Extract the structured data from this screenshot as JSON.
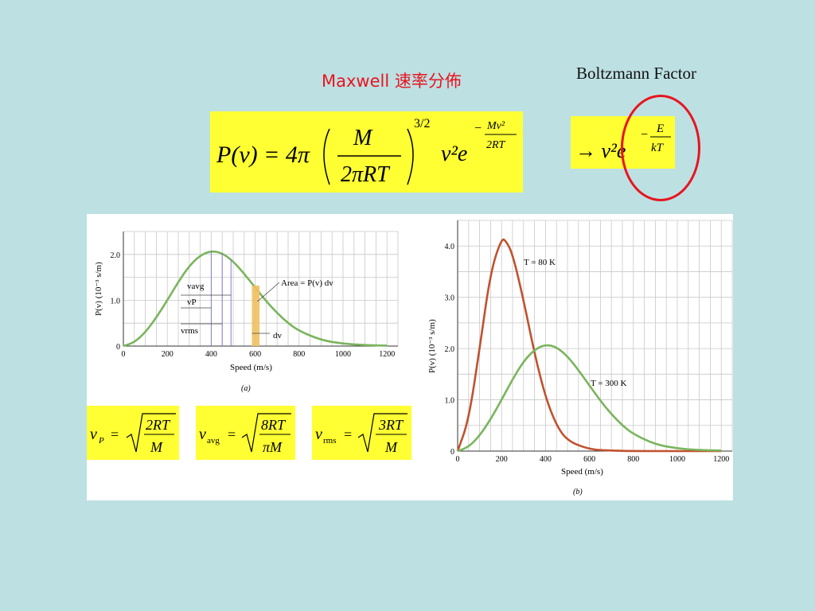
{
  "slide": {
    "title": "Maxwell 速率分佈",
    "boltzmann_label": "Boltzmann Factor",
    "colors": {
      "background": "#bde0e3",
      "highlight": "#ffff33",
      "title_red": "#e8141e",
      "curve_green": "#7ab55c",
      "curve_red": "#c0522e"
    }
  },
  "equations": {
    "maxwell": {
      "lhs": "P(v) = 4π",
      "frac_num": "M",
      "frac_den": "2πRT",
      "power": "3/2",
      "v2e": "v²e",
      "exp_num": "Mv²",
      "exp_den": "2RT",
      "minus": "−"
    },
    "boltzmann": {
      "arrow": "→ v²e",
      "exp_num": "E",
      "exp_den": "kT",
      "minus": "−"
    },
    "vp": {
      "lhs": "v",
      "sub": "P",
      "num": "2RT",
      "den": "M"
    },
    "vavg": {
      "lhs": "v",
      "sub": "avg",
      "num": "8RT",
      "den": "πM"
    },
    "vrms": {
      "lhs": "v",
      "sub": "rms",
      "num": "3RT",
      "den": "M"
    }
  },
  "chart_data": [
    {
      "type": "line",
      "caption": "(a)",
      "xlabel": "Speed (m/s)",
      "ylabel": "P(v) (10⁻³ s/m)",
      "xlim": [
        0,
        1250
      ],
      "ylim": [
        0,
        2.5
      ],
      "xticks": [
        "0",
        "200",
        "400",
        "600",
        "800",
        "1000",
        "1200"
      ],
      "yticks": [
        "0",
        "1.0",
        "2.0"
      ],
      "series": [
        {
          "x": [
            0,
            50,
            100,
            150,
            200,
            250,
            300,
            350,
            400,
            450,
            500,
            550,
            600,
            650,
            700,
            750,
            800,
            900,
            1000,
            1100,
            1200
          ],
          "y": [
            0,
            0.08,
            0.3,
            0.62,
            1.0,
            1.4,
            1.75,
            1.98,
            2.08,
            2.03,
            1.85,
            1.58,
            1.28,
            0.98,
            0.72,
            0.5,
            0.33,
            0.13,
            0.05,
            0.02,
            0.01
          ]
        }
      ],
      "annotations": {
        "vavg": "vavg",
        "vp": "vP",
        "vrms": "vrms",
        "area": "Area = P(v) dv",
        "dv": "dv"
      },
      "grid": true
    },
    {
      "type": "line",
      "caption": "(b)",
      "xlabel": "Speed (m/s)",
      "ylabel": "P(v) (10⁻³ s/m)",
      "xlim": [
        0,
        1250
      ],
      "ylim": [
        0,
        4.5
      ],
      "xticks": [
        "0",
        "200",
        "400",
        "600",
        "800",
        "1000",
        "1200"
      ],
      "yticks": [
        "0",
        "1.0",
        "2.0",
        "3.0",
        "4.0"
      ],
      "series": [
        {
          "name": "T = 80 K",
          "color": "#c0522e",
          "x": [
            0,
            50,
            100,
            150,
            200,
            220,
            250,
            300,
            350,
            400,
            450,
            500,
            600,
            700,
            800,
            1200
          ],
          "y": [
            0,
            0.6,
            2.0,
            3.5,
            4.15,
            4.1,
            3.85,
            2.95,
            1.9,
            1.05,
            0.5,
            0.2,
            0.03,
            0.01,
            0,
            0
          ]
        },
        {
          "name": "T = 300 K",
          "color": "#7ab55c",
          "x": [
            0,
            50,
            100,
            150,
            200,
            250,
            300,
            350,
            400,
            450,
            500,
            550,
            600,
            650,
            700,
            750,
            800,
            900,
            1000,
            1100,
            1200
          ],
          "y": [
            0,
            0.08,
            0.3,
            0.62,
            1.0,
            1.4,
            1.75,
            1.98,
            2.08,
            2.03,
            1.85,
            1.58,
            1.28,
            0.98,
            0.72,
            0.5,
            0.33,
            0.13,
            0.05,
            0.02,
            0.01
          ]
        }
      ],
      "grid": true
    }
  ]
}
